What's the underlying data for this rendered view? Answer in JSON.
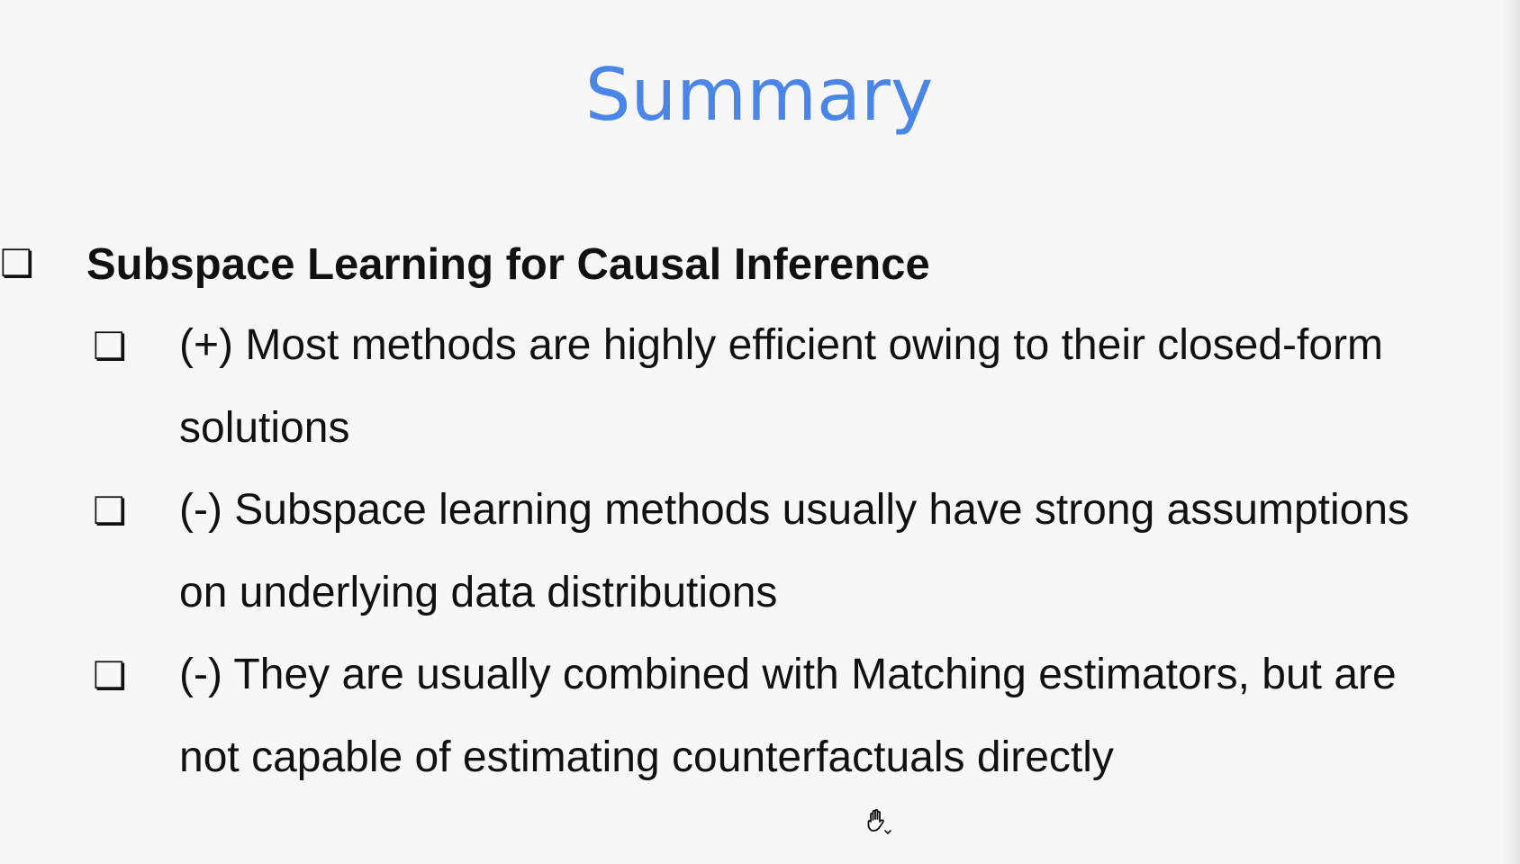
{
  "slide": {
    "title": "Summary",
    "accent_color": "#4a86e8",
    "text_color": "#111111",
    "background_color": "#f7f7f7",
    "bullet_glyph": "❏",
    "main_point": {
      "text": "Subspace Learning for Causal Inference"
    },
    "sub_points": [
      {
        "line1": "(+) Most methods are highly efficient owing to their closed-form",
        "line2": "solutions"
      },
      {
        "line1": "(-) Subspace learning methods usually have strong assumptions",
        "line2": "on underlying data distributions"
      },
      {
        "line1": "(-) They are usually combined with Matching estimators, but are",
        "line2": "not capable of estimating counterfactuals directly"
      }
    ]
  },
  "cursor": {
    "icon": "hand-pointer-icon"
  }
}
